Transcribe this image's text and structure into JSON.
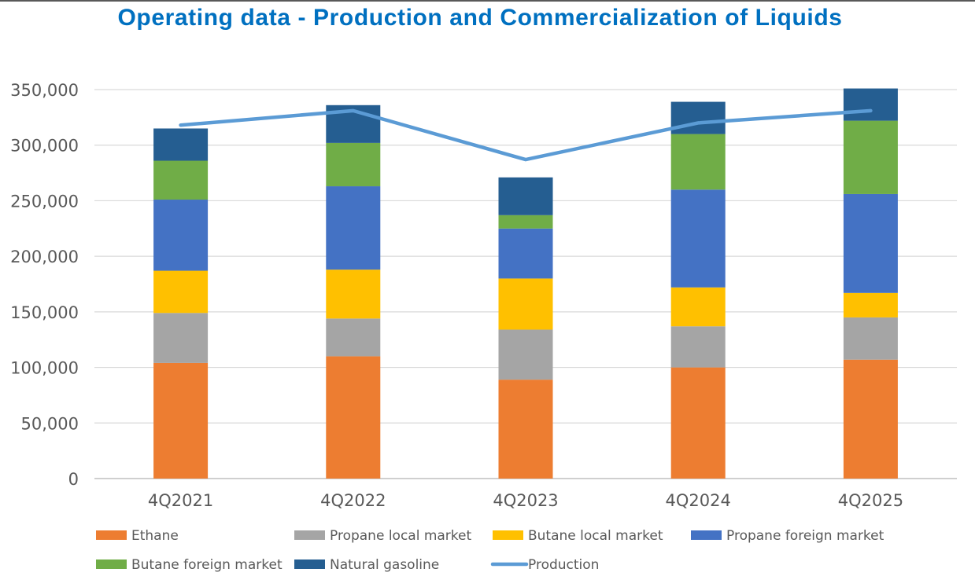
{
  "chart_data": {
    "type": "bar",
    "stacked": true,
    "title": "Operating data - Production and Commercialization of Liquids",
    "categories": [
      "4Q2021",
      "4Q2022",
      "4Q2023",
      "4Q2024",
      "4Q2025"
    ],
    "ylim": [
      0,
      350000
    ],
    "yticks": [
      "0",
      "50,000",
      "100,000",
      "150,000",
      "200,000",
      "250,000",
      "300,000",
      "350,000"
    ],
    "ytick_values": [
      0,
      50000,
      100000,
      150000,
      200000,
      250000,
      300000,
      350000
    ],
    "grid": true,
    "legend_position": "bottom",
    "series": [
      {
        "name": "Ethane",
        "color": "#ED7D31",
        "values": [
          104000,
          110000,
          89000,
          100000,
          107000
        ]
      },
      {
        "name": "Propane local market",
        "color": "#A5A5A5",
        "values": [
          45000,
          34000,
          45000,
          37000,
          38000
        ]
      },
      {
        "name": "Butane local market",
        "color": "#FFC000",
        "values": [
          38000,
          44000,
          46000,
          35000,
          22000
        ]
      },
      {
        "name": "Propane foreign market",
        "color": "#4472C4",
        "values": [
          64000,
          75000,
          45000,
          88000,
          89000
        ]
      },
      {
        "name": "Butane foreign market",
        "color": "#70AD47",
        "values": [
          35000,
          39000,
          12000,
          50000,
          66000
        ]
      },
      {
        "name": "Natural gasoline",
        "color": "#255E91",
        "values": [
          29000,
          34000,
          34000,
          29000,
          29000
        ]
      }
    ],
    "line_series": {
      "name": "Production",
      "color": "#5B9BD5",
      "values": [
        318000,
        331000,
        287000,
        320000,
        331000
      ]
    }
  }
}
